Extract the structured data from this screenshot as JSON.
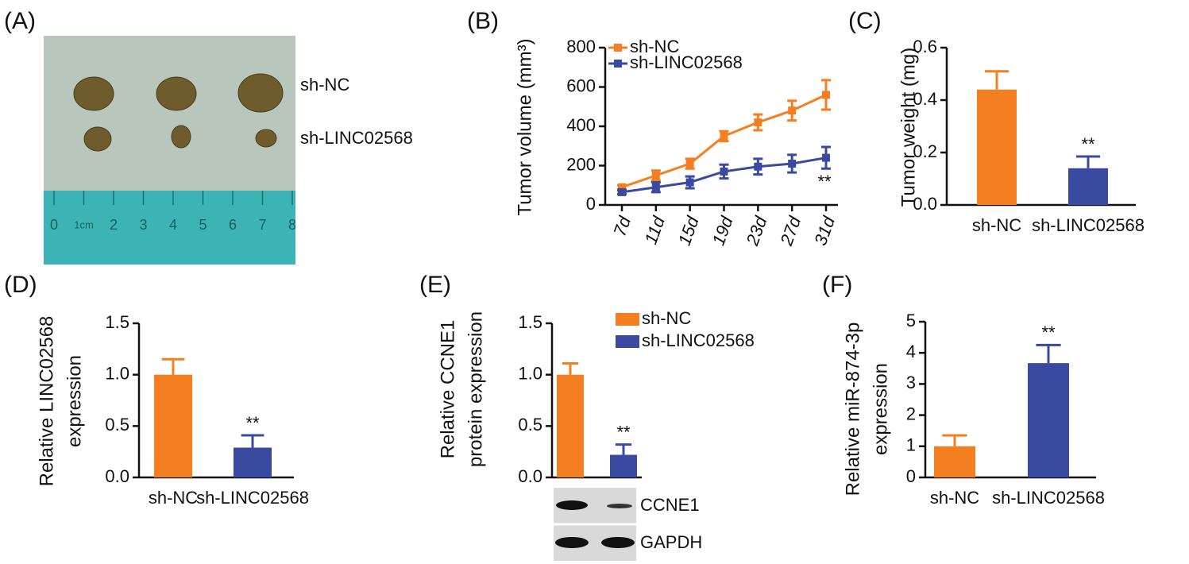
{
  "chart_data": [
    {
      "type": "photo",
      "panel": "(A)",
      "labels": [
        "sh-NC",
        "sh-LINC02568"
      ],
      "ruler_labels": [
        "0",
        "1cm",
        "2",
        "3",
        "4",
        "5",
        "6",
        "7",
        "8"
      ]
    },
    {
      "type": "line",
      "panel": "(B)",
      "ylabel": "Tumor volume (mm³)",
      "categories": [
        "7d",
        "11d",
        "15d",
        "19d",
        "23d",
        "27d",
        "31d"
      ],
      "series": [
        {
          "name": "sh-NC",
          "color": "#f47f20",
          "values": [
            90,
            150,
            210,
            350,
            420,
            480,
            560
          ],
          "errors": [
            10,
            25,
            25,
            25,
            40,
            50,
            75
          ]
        },
        {
          "name": "sh-LINC02568",
          "color": "#3a4aa0",
          "values": [
            65,
            90,
            115,
            170,
            195,
            210,
            240
          ],
          "errors": [
            10,
            25,
            30,
            35,
            40,
            45,
            55
          ]
        }
      ],
      "ylim": [
        0,
        800
      ],
      "yticks": [
        0,
        200,
        400,
        600,
        800
      ],
      "annotation": "**"
    },
    {
      "type": "bar",
      "panel": "(C)",
      "ylabel": "Tumor weight (mg)",
      "categories": [
        "sh-NC",
        "sh-LINC02568"
      ],
      "values": [
        0.44,
        0.14
      ],
      "errors": [
        0.07,
        0.045
      ],
      "colors": [
        "#f47f20",
        "#3a4aa0"
      ],
      "ylim": [
        0,
        0.6
      ],
      "yticks": [
        {
          "value": 0,
          "label": "0.0"
        },
        0.2,
        0.4,
        0.6
      ],
      "annotation": "**"
    },
    {
      "type": "bar",
      "panel": "(D)",
      "ylabel": [
        "Relative LINC02568",
        "expression"
      ],
      "categories": [
        "sh-NC",
        "sh-LINC02568"
      ],
      "values": [
        1.0,
        0.29
      ],
      "errors": [
        0.15,
        0.12
      ],
      "colors": [
        "#f47f20",
        "#3a4aa0"
      ],
      "ylim": [
        0,
        1.5
      ],
      "yticks": [
        {
          "value": 0,
          "label": "0.0"
        },
        0.5,
        {
          "value": 1,
          "label": "1.0"
        },
        1.5
      ],
      "annotation": "**"
    },
    {
      "type": "bar",
      "panel": "(E)",
      "ylabel": [
        "Relative CCNE1",
        "protein expression"
      ],
      "categories": [
        "sh-NC",
        "sh-LINC02568"
      ],
      "values": [
        1.0,
        0.22
      ],
      "errors": [
        0.11,
        0.1
      ],
      "colors": [
        "#f47f20",
        "#3a4aa0"
      ],
      "legend": true,
      "ylim": [
        0,
        1.5
      ],
      "yticks": [
        {
          "value": 0,
          "label": "0.0"
        },
        0.5,
        {
          "value": 1,
          "label": "1.0"
        },
        1.5
      ],
      "annotation": "**",
      "blot_labels": [
        "CCNE1",
        "GAPDH"
      ]
    },
    {
      "type": "bar",
      "panel": "(F)",
      "ylabel": [
        "Relative miR-874-3p",
        "expression"
      ],
      "categories": [
        "sh-NC",
        "sh-LINC02568"
      ],
      "values": [
        1.0,
        3.67
      ],
      "errors": [
        0.35,
        0.58
      ],
      "colors": [
        "#f47f20",
        "#3a4aa0"
      ],
      "ylim": [
        0,
        5
      ],
      "yticks": [
        0,
        1,
        2,
        3,
        4,
        5
      ],
      "annotation": "**"
    }
  ]
}
